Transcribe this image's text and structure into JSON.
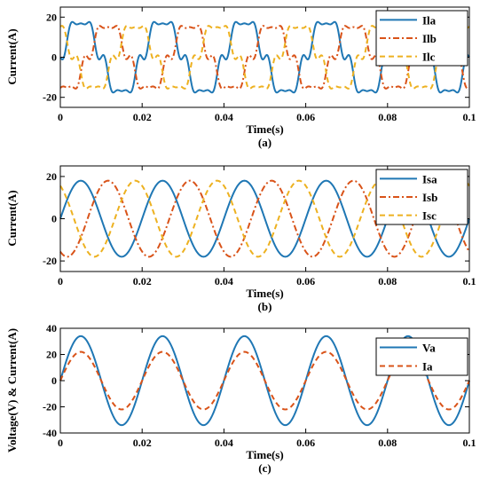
{
  "chart_data": [
    {
      "type": "line",
      "panel_label": "(a)",
      "xlabel": "Time(s)",
      "ylabel": "Current(A)",
      "xlim": [
        0,
        0.1
      ],
      "ylim": [
        -25,
        25
      ],
      "xticks": [
        0,
        0.02,
        0.04,
        0.06,
        0.08,
        0.1
      ],
      "xtick_labels": [
        "0",
        "0.02",
        "0.04",
        "0.06",
        "0.08",
        "0.1"
      ],
      "yticks": [
        -20,
        0,
        20
      ],
      "ytick_labels": [
        "-20",
        "0",
        "20"
      ],
      "grid": false,
      "legend_position": "top-right",
      "frequency_hz": 50,
      "series": [
        {
          "name": "Ila",
          "color": "#1f77b4",
          "dash": "solid",
          "amplitude": 18,
          "phase_deg": 0,
          "waveform": "distorted-sine"
        },
        {
          "name": "Ilb",
          "color": "#d95319",
          "dash": "dash-dot",
          "amplitude": 16,
          "phase_deg": -120,
          "waveform": "distorted-sine"
        },
        {
          "name": "Ilc",
          "color": "#edb120",
          "dash": "dashed",
          "amplitude": 16,
          "phase_deg": 120,
          "waveform": "distorted-sine"
        }
      ]
    },
    {
      "type": "line",
      "panel_label": "(b)",
      "xlabel": "Time(s)",
      "ylabel": "Current(A)",
      "xlim": [
        0,
        0.1
      ],
      "ylim": [
        -25,
        25
      ],
      "xticks": [
        0,
        0.02,
        0.04,
        0.06,
        0.08,
        0.1
      ],
      "xtick_labels": [
        "0",
        "0.02",
        "0.04",
        "0.06",
        "0.08",
        "0.1"
      ],
      "yticks": [
        -20,
        0,
        20
      ],
      "ytick_labels": [
        "-20",
        "0",
        "20"
      ],
      "grid": false,
      "legend_position": "top-right",
      "frequency_hz": 50,
      "series": [
        {
          "name": "Isa",
          "color": "#1f77b4",
          "dash": "solid",
          "amplitude": 18,
          "phase_deg": 0,
          "waveform": "sine"
        },
        {
          "name": "Isb",
          "color": "#d95319",
          "dash": "dash-dot",
          "amplitude": 18,
          "phase_deg": -120,
          "waveform": "sine"
        },
        {
          "name": "Isc",
          "color": "#edb120",
          "dash": "dashed",
          "amplitude": 18,
          "phase_deg": 120,
          "waveform": "sine"
        }
      ]
    },
    {
      "type": "line",
      "panel_label": "(c)",
      "xlabel": "Time(s)",
      "ylabel": "Voltage(V) & Current(A)",
      "xlim": [
        0,
        0.1
      ],
      "ylim": [
        -40,
        40
      ],
      "xticks": [
        0,
        0.02,
        0.04,
        0.06,
        0.08,
        0.1
      ],
      "xtick_labels": [
        "0",
        "0.02",
        "0.04",
        "0.06",
        "0.08",
        "0.1"
      ],
      "yticks": [
        -40,
        -20,
        0,
        20,
        40
      ],
      "ytick_labels": [
        "-40",
        "-20",
        "0",
        "20",
        "40"
      ],
      "grid": false,
      "legend_position": "top-right",
      "frequency_hz": 50,
      "series": [
        {
          "name": "Va",
          "color": "#1f77b4",
          "dash": "solid",
          "amplitude": 34,
          "phase_deg": 0,
          "waveform": "sine"
        },
        {
          "name": "Ia",
          "color": "#d95319",
          "dash": "dashed",
          "amplitude": 22,
          "phase_deg": 0,
          "waveform": "sine"
        }
      ]
    }
  ]
}
